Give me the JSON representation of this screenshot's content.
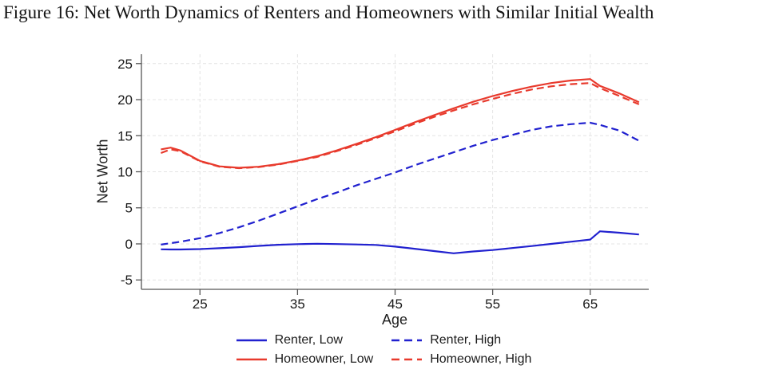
{
  "figure": {
    "title": "Figure 16: Net Worth Dynamics of Renters and Homeowners with Similar Initial Wealth"
  },
  "chart": {
    "xlabel": "Age",
    "ylabel": "Net Worth"
  },
  "chart_data": {
    "type": "line",
    "title": "Net Worth Dynamics of Renters and Homeowners with Similar Initial Wealth",
    "xlabel": "Age",
    "ylabel": "Net Worth",
    "xlim": [
      19,
      71
    ],
    "ylim": [
      -6.3,
      26.3
    ],
    "x_ticks": [
      25,
      35,
      45,
      55,
      65
    ],
    "y_ticks": [
      -5,
      0,
      5,
      10,
      15,
      20,
      25
    ],
    "grid": true,
    "legend_position": "bottom",
    "colors": {
      "renter_blue": "#2121cf",
      "homeowner_red": "#e83a2d",
      "gridline": "#e4e4e4",
      "axis": "#565656"
    },
    "series": [
      {
        "name": "Renter, Low",
        "color": "#2121cf",
        "style": "solid",
        "points": [
          [
            21,
            -0.75
          ],
          [
            22,
            -0.78
          ],
          [
            23,
            -0.78
          ],
          [
            25,
            -0.72
          ],
          [
            27,
            -0.6
          ],
          [
            29,
            -0.45
          ],
          [
            31,
            -0.28
          ],
          [
            33,
            -0.12
          ],
          [
            35,
            -0.03
          ],
          [
            37,
            0.02
          ],
          [
            39,
            -0.02
          ],
          [
            41,
            -0.08
          ],
          [
            43,
            -0.15
          ],
          [
            45,
            -0.38
          ],
          [
            47,
            -0.68
          ],
          [
            49,
            -1.0
          ],
          [
            51,
            -1.3
          ],
          [
            53,
            -1.05
          ],
          [
            55,
            -0.85
          ],
          [
            57,
            -0.58
          ],
          [
            59,
            -0.3
          ],
          [
            61,
            0.0
          ],
          [
            63,
            0.3
          ],
          [
            65,
            0.6
          ],
          [
            66,
            1.75
          ],
          [
            68,
            1.55
          ],
          [
            70,
            1.3
          ]
        ]
      },
      {
        "name": "Renter, High",
        "color": "#2121cf",
        "style": "dashed",
        "points": [
          [
            21,
            -0.1
          ],
          [
            23,
            0.3
          ],
          [
            25,
            0.8
          ],
          [
            27,
            1.5
          ],
          [
            29,
            2.3
          ],
          [
            31,
            3.2
          ],
          [
            33,
            4.2
          ],
          [
            35,
            5.2
          ],
          [
            37,
            6.2
          ],
          [
            39,
            7.1
          ],
          [
            41,
            8.1
          ],
          [
            43,
            9.0
          ],
          [
            45,
            9.9
          ],
          [
            47,
            10.9
          ],
          [
            49,
            11.8
          ],
          [
            51,
            12.7
          ],
          [
            53,
            13.6
          ],
          [
            55,
            14.4
          ],
          [
            57,
            15.1
          ],
          [
            59,
            15.8
          ],
          [
            61,
            16.3
          ],
          [
            63,
            16.6
          ],
          [
            65,
            16.8
          ],
          [
            66,
            16.5
          ],
          [
            68,
            15.7
          ],
          [
            70,
            14.3
          ]
        ]
      },
      {
        "name": "Homeowner, Low",
        "color": "#e83a2d",
        "style": "solid",
        "points": [
          [
            21,
            13.1
          ],
          [
            22,
            13.35
          ],
          [
            23,
            12.95
          ],
          [
            25,
            11.5
          ],
          [
            27,
            10.75
          ],
          [
            29,
            10.55
          ],
          [
            31,
            10.7
          ],
          [
            33,
            11.05
          ],
          [
            35,
            11.55
          ],
          [
            37,
            12.15
          ],
          [
            39,
            12.95
          ],
          [
            41,
            13.85
          ],
          [
            43,
            14.8
          ],
          [
            45,
            15.8
          ],
          [
            47,
            16.85
          ],
          [
            49,
            17.85
          ],
          [
            51,
            18.8
          ],
          [
            53,
            19.7
          ],
          [
            55,
            20.5
          ],
          [
            57,
            21.2
          ],
          [
            59,
            21.8
          ],
          [
            61,
            22.3
          ],
          [
            63,
            22.65
          ],
          [
            65,
            22.85
          ],
          [
            66,
            21.9
          ],
          [
            68,
            20.85
          ],
          [
            70,
            19.65
          ]
        ]
      },
      {
        "name": "Homeowner, High",
        "color": "#e83a2d",
        "style": "dashed",
        "points": [
          [
            21,
            12.6
          ],
          [
            22,
            13.1
          ],
          [
            23,
            12.85
          ],
          [
            25,
            11.45
          ],
          [
            27,
            10.7
          ],
          [
            29,
            10.5
          ],
          [
            31,
            10.65
          ],
          [
            33,
            11.0
          ],
          [
            35,
            11.5
          ],
          [
            37,
            12.05
          ],
          [
            39,
            12.85
          ],
          [
            41,
            13.7
          ],
          [
            43,
            14.65
          ],
          [
            45,
            15.6
          ],
          [
            47,
            16.65
          ],
          [
            49,
            17.6
          ],
          [
            51,
            18.5
          ],
          [
            53,
            19.35
          ],
          [
            55,
            20.1
          ],
          [
            57,
            20.8
          ],
          [
            59,
            21.4
          ],
          [
            61,
            21.85
          ],
          [
            63,
            22.15
          ],
          [
            65,
            22.3
          ],
          [
            66,
            21.6
          ],
          [
            68,
            20.5
          ],
          [
            70,
            19.35
          ]
        ]
      }
    ]
  }
}
